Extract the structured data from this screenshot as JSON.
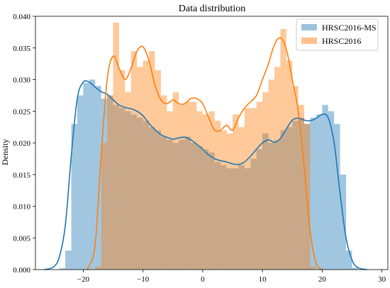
{
  "chart_data": {
    "type": "histogram",
    "title": "Data distribution",
    "xlabel": "",
    "ylabel": "Density",
    "xlim": [
      -28,
      31
    ],
    "ylim": [
      0,
      0.04
    ],
    "xticks": [
      -20,
      -10,
      0,
      10,
      20,
      30
    ],
    "yticks": [
      0.0,
      0.005,
      0.01,
      0.015,
      0.02,
      0.025,
      0.03,
      0.035,
      0.04
    ],
    "ytick_labels": [
      "0.000",
      "0.005",
      "0.010",
      "0.015",
      "0.020",
      "0.025",
      "0.030",
      "0.035",
      "0.040"
    ],
    "grid": false,
    "legend_position": "top-right",
    "bin_width": 1,
    "series": [
      {
        "name": "HRSC2016-MS",
        "color": "#1f77b4",
        "bar_color": "#9cc2df",
        "bins": [
          [
            -24,
            0.0002
          ],
          [
            -23,
            0.003
          ],
          [
            -22,
            0.023
          ],
          [
            -21,
            0.0275
          ],
          [
            -20,
            0.0295
          ],
          [
            -19,
            0.03
          ],
          [
            -18,
            0.029
          ],
          [
            -17,
            0.027
          ],
          [
            -16,
            0.0275
          ],
          [
            -15,
            0.026
          ],
          [
            -14,
            0.0255
          ],
          [
            -13,
            0.025
          ],
          [
            -12,
            0.0245
          ],
          [
            -11,
            0.024
          ],
          [
            -10,
            0.0235
          ],
          [
            -9,
            0.0225
          ],
          [
            -8,
            0.022
          ],
          [
            -7,
            0.021
          ],
          [
            -6,
            0.0205
          ],
          [
            -5,
            0.02
          ],
          [
            -4,
            0.0205
          ],
          [
            -3,
            0.021
          ],
          [
            -2,
            0.02
          ],
          [
            -1,
            0.0195
          ],
          [
            0,
            0.019
          ],
          [
            1,
            0.0185
          ],
          [
            2,
            0.017
          ],
          [
            3,
            0.0165
          ],
          [
            4,
            0.016
          ],
          [
            5,
            0.016
          ],
          [
            6,
            0.0165
          ],
          [
            7,
            0.016
          ],
          [
            8,
            0.0175
          ],
          [
            9,
            0.019
          ],
          [
            10,
            0.0215
          ],
          [
            11,
            0.02
          ],
          [
            12,
            0.0205
          ],
          [
            13,
            0.022
          ],
          [
            14,
            0.0225
          ],
          [
            15,
            0.0235
          ],
          [
            16,
            0.024
          ],
          [
            17,
            0.023
          ],
          [
            18,
            0.024
          ],
          [
            19,
            0.0245
          ],
          [
            20,
            0.026
          ],
          [
            21,
            0.025
          ],
          [
            22,
            0.023
          ],
          [
            23,
            0.015
          ],
          [
            24,
            0.003
          ],
          [
            25,
            0.0003
          ]
        ],
        "kde": [
          [
            -26.5,
            0.0
          ],
          [
            -25,
            0.0004
          ],
          [
            -24,
            0.002
          ],
          [
            -23,
            0.007
          ],
          [
            -22,
            0.018
          ],
          [
            -21,
            0.027
          ],
          [
            -20,
            0.0296
          ],
          [
            -19,
            0.0296
          ],
          [
            -18,
            0.0288
          ],
          [
            -17,
            0.0281
          ],
          [
            -16,
            0.0277
          ],
          [
            -15,
            0.0268
          ],
          [
            -14,
            0.026
          ],
          [
            -13,
            0.0256
          ],
          [
            -12,
            0.0254
          ],
          [
            -11,
            0.025
          ],
          [
            -10,
            0.0243
          ],
          [
            -9,
            0.0231
          ],
          [
            -8,
            0.0221
          ],
          [
            -7,
            0.0213
          ],
          [
            -6,
            0.0209
          ],
          [
            -5,
            0.0206
          ],
          [
            -4,
            0.0208
          ],
          [
            -3,
            0.0209
          ],
          [
            -2,
            0.0205
          ],
          [
            -1,
            0.0198
          ],
          [
            0,
            0.019
          ],
          [
            1,
            0.0181
          ],
          [
            2,
            0.0175
          ],
          [
            3,
            0.0172
          ],
          [
            4,
            0.017
          ],
          [
            5,
            0.0167
          ],
          [
            6,
            0.0166
          ],
          [
            7,
            0.017
          ],
          [
            8,
            0.0179
          ],
          [
            9,
            0.019
          ],
          [
            10,
            0.02
          ],
          [
            11,
            0.0205
          ],
          [
            12,
            0.0201
          ],
          [
            13,
            0.0207
          ],
          [
            14,
            0.0222
          ],
          [
            15,
            0.0236
          ],
          [
            16,
            0.0239
          ],
          [
            17,
            0.0236
          ],
          [
            18,
            0.0235
          ],
          [
            19,
            0.0239
          ],
          [
            20,
            0.0245
          ],
          [
            21,
            0.024
          ],
          [
            22,
            0.02
          ],
          [
            23,
            0.012
          ],
          [
            24,
            0.005
          ],
          [
            25,
            0.0015
          ],
          [
            26,
            0.0003
          ],
          [
            27.5,
            0.0
          ]
        ]
      },
      {
        "name": "HRSC2016",
        "color": "#ff7f0e",
        "bar_color": "#ffc08f",
        "bins": [
          [
            -18,
            0.0005
          ],
          [
            -17,
            0.02
          ],
          [
            -16,
            0.0275
          ],
          [
            -15,
            0.039
          ],
          [
            -14,
            0.0315
          ],
          [
            -13,
            0.028
          ],
          [
            -12,
            0.0345
          ],
          [
            -11,
            0.032
          ],
          [
            -10,
            0.033
          ],
          [
            -9,
            0.0345
          ],
          [
            -8,
            0.0315
          ],
          [
            -7,
            0.0275
          ],
          [
            -6,
            0.025
          ],
          [
            -5,
            0.028
          ],
          [
            -4,
            0.026
          ],
          [
            -3,
            0.0265
          ],
          [
            -2,
            0.0265
          ],
          [
            -1,
            0.025
          ],
          [
            0,
            0.0245
          ],
          [
            1,
            0.025
          ],
          [
            2,
            0.0235
          ],
          [
            3,
            0.022
          ],
          [
            4,
            0.0215
          ],
          [
            5,
            0.0245
          ],
          [
            6,
            0.0225
          ],
          [
            7,
            0.0255
          ],
          [
            8,
            0.0255
          ],
          [
            9,
            0.0265
          ],
          [
            10,
            0.028
          ],
          [
            11,
            0.03
          ],
          [
            12,
            0.032
          ],
          [
            13,
            0.038
          ],
          [
            14,
            0.033
          ],
          [
            15,
            0.029
          ],
          [
            16,
            0.026
          ],
          [
            17,
            0.023
          ],
          [
            18,
            0.0005
          ]
        ],
        "kde": [
          [
            -19.5,
            0.0
          ],
          [
            -19,
            0.0006
          ],
          [
            -18,
            0.004
          ],
          [
            -17,
            0.018
          ],
          [
            -16,
            0.03
          ],
          [
            -15,
            0.0337
          ],
          [
            -14,
            0.0318
          ],
          [
            -13,
            0.03
          ],
          [
            -12,
            0.0318
          ],
          [
            -11,
            0.0345
          ],
          [
            -10,
            0.0352
          ],
          [
            -9,
            0.033
          ],
          [
            -8,
            0.0292
          ],
          [
            -7,
            0.0268
          ],
          [
            -6,
            0.0262
          ],
          [
            -5,
            0.0268
          ],
          [
            -4,
            0.0262
          ],
          [
            -3,
            0.0262
          ],
          [
            -2,
            0.027
          ],
          [
            -1,
            0.027
          ],
          [
            0,
            0.0262
          ],
          [
            1,
            0.024
          ],
          [
            2,
            0.022
          ],
          [
            3,
            0.022
          ],
          [
            4,
            0.0228
          ],
          [
            5,
            0.022
          ],
          [
            6,
            0.024
          ],
          [
            7,
            0.0255
          ],
          [
            8,
            0.0265
          ],
          [
            9,
            0.0275
          ],
          [
            10,
            0.03
          ],
          [
            11,
            0.0325
          ],
          [
            12,
            0.0355
          ],
          [
            13,
            0.0366
          ],
          [
            14,
            0.0348
          ],
          [
            15,
            0.03
          ],
          [
            16,
            0.025
          ],
          [
            17,
            0.016
          ],
          [
            18,
            0.006
          ],
          [
            19,
            0.001
          ],
          [
            20,
            0.0
          ]
        ]
      }
    ]
  }
}
